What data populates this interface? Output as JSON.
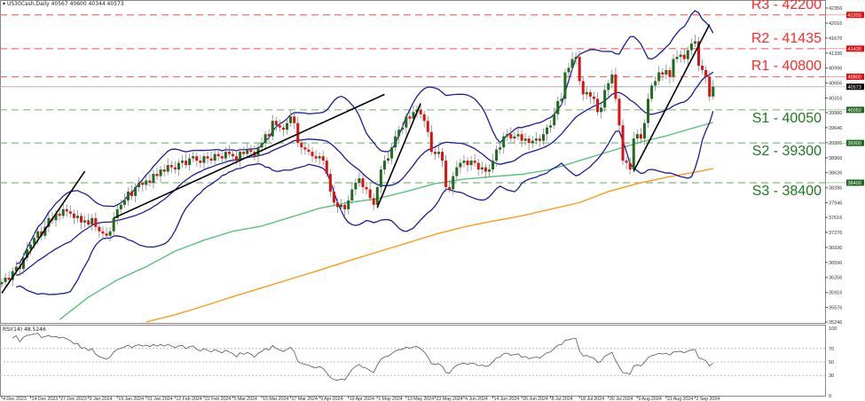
{
  "header": {
    "symbol": "US30Cash,Daily",
    "ohlc": "40567 40600 40344 40573"
  },
  "rsi": {
    "label": "RSI(14) 48.5246",
    "period": 14,
    "levels": [
      70,
      50,
      30
    ],
    "ticks": [
      "100",
      "70",
      "50",
      "30",
      "0"
    ]
  },
  "colors": {
    "bull": "#1e6b1e",
    "bear": "#e01010",
    "bollinger": "#1c1c9c",
    "ma_fast": "#5cc27a",
    "ma_slow": "#ff9a1a",
    "resistance": "#ff2a2a",
    "support": "#1e7a1e",
    "current": "#000000"
  },
  "chart_data": {
    "type": "candlestick",
    "symbol": "US30Cash",
    "timeframe": "Daily",
    "ylim": [
      35246,
      42356
    ],
    "y_ticks": [
      "42356",
      "42016",
      "41676",
      "41336",
      "40996",
      "40656",
      "40316",
      "39986",
      "39646",
      "39306",
      "38966",
      "38626",
      "38286",
      "37946",
      "37616",
      "37276",
      "36936",
      "36596",
      "36256",
      "35916",
      "35576",
      "35246"
    ],
    "x_labels": [
      "4 Dec 2023",
      "14 Dec 2023",
      "27 Dec 2023",
      "9 Jan 2024",
      "19 Jan 2024",
      "31 Jan 2024",
      "12 Feb 2024",
      "22 Feb 2024",
      "5 Mar 2024",
      "15 Mar 2024",
      "27 Mar 2024",
      "9 Apr 2024",
      "19 Apr 2024",
      "1 May 2024",
      "13 May 2024",
      "23 May 2024",
      "4 Jun 2024",
      "14 Jun 2024",
      "26 Jun 2024",
      "8 Jul 2024",
      "18 Jul 2024",
      "30 Jul 2024",
      "9 Aug 2024",
      "21 Aug 2024",
      "2 Sep 2024"
    ],
    "closes": [
      36150,
      36250,
      36200,
      36400,
      36500,
      36450,
      36700,
      36900,
      37000,
      37150,
      37300,
      37200,
      37400,
      37600,
      37550,
      37700,
      37650,
      37800,
      37750,
      37700,
      37600,
      37650,
      37500,
      37550,
      37450,
      37600,
      37400,
      37300,
      37250,
      37200,
      37300,
      37600,
      37800,
      37900,
      38000,
      38200,
      38100,
      38300,
      38400,
      38350,
      38450,
      38400,
      38600,
      38550,
      38700,
      38650,
      38800,
      38750,
      38700,
      38850,
      38900,
      38800,
      38950,
      39000,
      38900,
      38850,
      39000,
      38950,
      38900,
      39050,
      39000,
      38950,
      39100,
      39050,
      39000,
      38900,
      39100,
      39050,
      39150,
      39100,
      39000,
      39200,
      39300,
      39500,
      39450,
      39800,
      39700,
      39650,
      39600,
      39750,
      39900,
      39750,
      39300,
      39200,
      39150,
      39100,
      39000,
      38950,
      39000,
      38900,
      38600,
      38200,
      37950,
      37850,
      37900,
      37800,
      38000,
      38250,
      38400,
      38500,
      38300,
      38250,
      38050,
      37900,
      38300,
      38700,
      38900,
      38950,
      39200,
      39450,
      39600,
      39650,
      39900,
      39850,
      40000,
      40050,
      39950,
      39800,
      39550,
      39100,
      39050,
      39100,
      38900,
      38300,
      38250,
      38550,
      38750,
      38850,
      38900,
      38800,
      38900,
      38850,
      38700,
      38750,
      38650,
      38700,
      38900,
      39150,
      39200,
      39450,
      39500,
      39400,
      39450,
      39500,
      39350,
      39400,
      39300,
      39350,
      39400,
      39350,
      39500,
      39650,
      39700,
      39950,
      40250,
      40300,
      40900,
      41000,
      41200,
      41250,
      40700,
      40400,
      40450,
      40350,
      40300,
      40000,
      40100,
      40500,
      40650,
      40850,
      40300,
      39700,
      38900,
      38850,
      38700,
      39400,
      39500,
      39400,
      39750,
      40300,
      40600,
      40700,
      40900,
      40850,
      40950,
      40800,
      41200,
      41250,
      41300,
      41200,
      41400,
      41550,
      41600,
      41050,
      40950,
      40800,
      40350,
      40573
    ],
    "bollinger": {
      "period": 20,
      "deviations": 2
    },
    "moving_averages": {
      "fast_at_labels": [
        null,
        null,
        35300,
        35810,
        36200,
        36500,
        36850,
        37100,
        37300,
        37420,
        37620,
        37820,
        37950,
        38040,
        38200,
        38380,
        38480,
        38540,
        38590,
        38700,
        38900,
        39100,
        39300,
        39460,
        39650
      ],
      "fast_latest": 39765,
      "slow_at_labels": [
        null,
        null,
        null,
        null,
        null,
        35250,
        35410,
        35610,
        35820,
        36020,
        36220,
        36420,
        36630,
        36830,
        37030,
        37230,
        37400,
        37530,
        37650,
        37800,
        37950,
        38200,
        38380,
        38520,
        38640
      ],
      "slow_latest": 38720
    },
    "levels": [
      {
        "name": "R3",
        "value": 42200,
        "label": "R3 - 42200",
        "badge": "42200",
        "kind": "resistance"
      },
      {
        "name": "R2",
        "value": 41435,
        "label": "R2 - 41435",
        "badge": "41435",
        "kind": "resistance"
      },
      {
        "name": "R1",
        "value": 40800,
        "label": "R1 - 40800",
        "badge": "40800",
        "kind": "resistance"
      },
      {
        "name": "S1",
        "value": 40050,
        "label": "S1 - 40050",
        "badge": "40050",
        "kind": "support"
      },
      {
        "name": "S2",
        "value": 39300,
        "label": "S2 - 39300",
        "badge": "39300",
        "kind": "support"
      },
      {
        "name": "S3",
        "value": 38400,
        "label": "S3 - 38400",
        "badge": "38400",
        "kind": "support"
      }
    ],
    "current_price": {
      "value": 40573,
      "badge": "40573"
    }
  }
}
